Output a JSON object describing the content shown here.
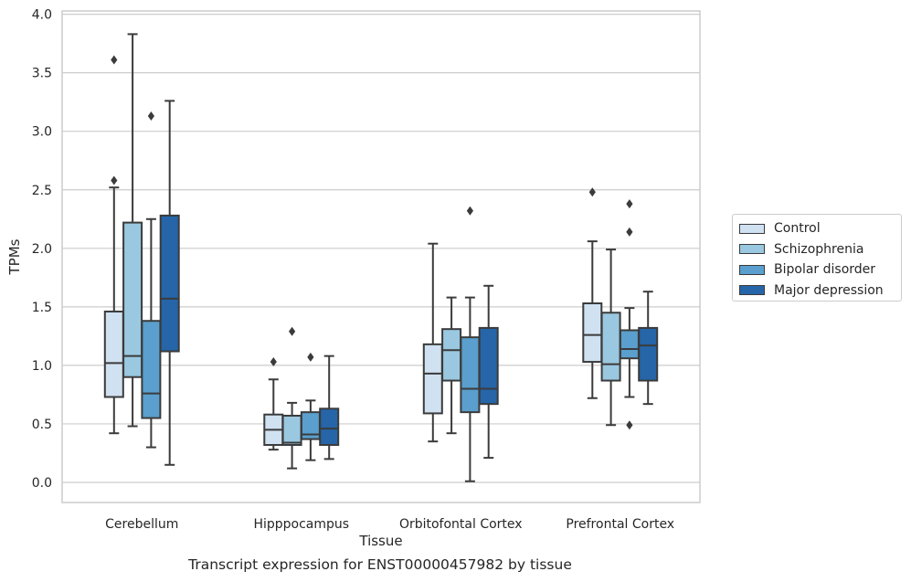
{
  "caption": "Transcript expression for ENST00000457982 by tissue",
  "chart_data": {
    "type": "box",
    "xlabel": "Tissue",
    "ylabel": "TPMs",
    "ylim": [
      -0.17,
      4.02
    ],
    "yticks": [
      "0.0",
      "0.5",
      "1.0",
      "1.5",
      "2.0",
      "2.5",
      "3.0",
      "3.5",
      "4.0"
    ],
    "grid": "horizontal",
    "legend_position": "right",
    "categories": [
      "Cerebellum",
      "Hipppocampus",
      "Orbitofontal Cortex",
      "Prefrontal Cortex"
    ],
    "series": [
      {
        "name": "Control",
        "color": "#d0e1f1",
        "boxes": [
          {
            "whislo": 0.42,
            "q1": 0.73,
            "med": 1.02,
            "q3": 1.46,
            "whishi": 2.52,
            "fliers": [
              2.58,
              3.61
            ]
          },
          {
            "whislo": 0.28,
            "q1": 0.32,
            "med": 0.45,
            "q3": 0.58,
            "whishi": 0.88,
            "fliers": [
              1.03
            ]
          },
          {
            "whislo": 0.35,
            "q1": 0.59,
            "med": 0.93,
            "q3": 1.18,
            "whishi": 2.04,
            "fliers": []
          },
          {
            "whislo": 0.72,
            "q1": 1.03,
            "med": 1.26,
            "q3": 1.53,
            "whishi": 2.06,
            "fliers": [
              2.48
            ]
          }
        ]
      },
      {
        "name": "Schizophrenia",
        "color": "#9ac8e0",
        "boxes": [
          {
            "whislo": 0.48,
            "q1": 0.9,
            "med": 1.08,
            "q3": 2.22,
            "whishi": 3.83,
            "fliers": []
          },
          {
            "whislo": 0.12,
            "q1": 0.32,
            "med": 0.34,
            "q3": 0.57,
            "whishi": 0.68,
            "fliers": [
              1.29
            ]
          },
          {
            "whislo": 0.42,
            "q1": 0.87,
            "med": 1.13,
            "q3": 1.31,
            "whishi": 1.58,
            "fliers": []
          },
          {
            "whislo": 0.49,
            "q1": 0.87,
            "med": 1.01,
            "q3": 1.45,
            "whishi": 1.99,
            "fliers": []
          }
        ]
      },
      {
        "name": "Bipolar disorder",
        "color": "#5a9fcd",
        "boxes": [
          {
            "whislo": 0.3,
            "q1": 0.55,
            "med": 0.76,
            "q3": 1.38,
            "whishi": 2.25,
            "fliers": [
              3.13
            ]
          },
          {
            "whislo": 0.19,
            "q1": 0.37,
            "med": 0.41,
            "q3": 0.6,
            "whishi": 0.7,
            "fliers": [
              1.07
            ]
          },
          {
            "whislo": 0.01,
            "q1": 0.6,
            "med": 0.8,
            "q3": 1.24,
            "whishi": 1.58,
            "fliers": [
              2.32
            ]
          },
          {
            "whislo": 0.73,
            "q1": 1.06,
            "med": 1.14,
            "q3": 1.3,
            "whishi": 1.49,
            "fliers": [
              2.14,
              2.38,
              0.49
            ]
          }
        ]
      },
      {
        "name": "Major depression",
        "color": "#2565a8",
        "boxes": [
          {
            "whislo": 0.15,
            "q1": 1.12,
            "med": 1.57,
            "q3": 2.28,
            "whishi": 3.26,
            "fliers": []
          },
          {
            "whislo": 0.2,
            "q1": 0.32,
            "med": 0.46,
            "q3": 0.63,
            "whishi": 1.08,
            "fliers": []
          },
          {
            "whislo": 0.21,
            "q1": 0.67,
            "med": 0.8,
            "q3": 1.32,
            "whishi": 1.68,
            "fliers": []
          },
          {
            "whislo": 0.67,
            "q1": 0.87,
            "med": 1.17,
            "q3": 1.32,
            "whishi": 1.63,
            "fliers": []
          }
        ]
      }
    ]
  }
}
